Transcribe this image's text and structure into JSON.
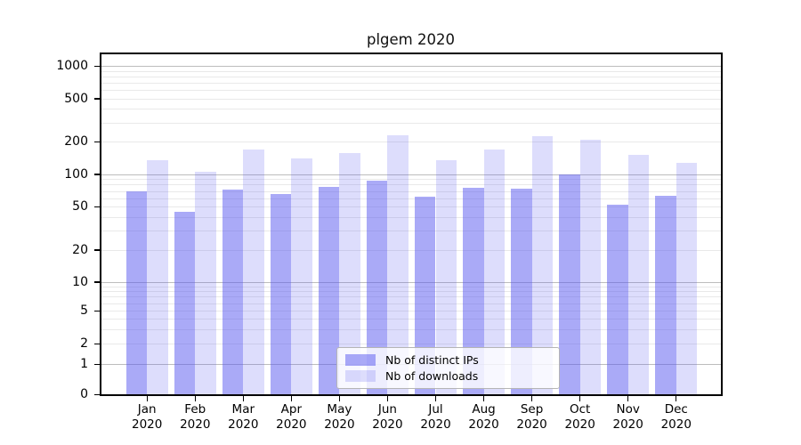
{
  "chart_data": {
    "type": "bar",
    "title": "plgem 2020",
    "categories": [
      "Jan 2020",
      "Feb 2020",
      "Mar 2020",
      "Apr 2020",
      "May 2020",
      "Jun 2020",
      "Jul 2020",
      "Aug 2020",
      "Sep 2020",
      "Oct 2020",
      "Nov 2020",
      "Dec 2020"
    ],
    "months": [
      "Jan",
      "Feb",
      "Mar",
      "Apr",
      "May",
      "Jun",
      "Jul",
      "Aug",
      "Sep",
      "Oct",
      "Nov",
      "Dec"
    ],
    "year": "2020",
    "series": [
      {
        "name": "Nb of distinct IPs",
        "color": "rgba(85,85,240,0.5)",
        "values": [
          70,
          45,
          72,
          66,
          77,
          87,
          62,
          75,
          74,
          100,
          52,
          63
        ]
      },
      {
        "name": "Nb of downloads",
        "color": "rgba(85,85,240,0.2)",
        "values": [
          135,
          105,
          170,
          140,
          155,
          227,
          135,
          170,
          222,
          208,
          150,
          127
        ]
      }
    ],
    "xlabel": "",
    "ylabel": "",
    "yscale": "symlog",
    "yticks": [
      0,
      1,
      2,
      5,
      10,
      20,
      50,
      100,
      200,
      500,
      1000
    ],
    "ylim": [
      0,
      1300
    ],
    "grid": "horizontal log major and minor gridlines",
    "legend_position": "inside bottom-center",
    "colors": {
      "ips_bar": "rgba(85,85,240,0.5)",
      "downloads_bar": "rgba(85,85,240,0.2)",
      "major_grid": "#bdbdbd",
      "minor_grid": "#e9e9e9",
      "axis": "#000000"
    }
  }
}
